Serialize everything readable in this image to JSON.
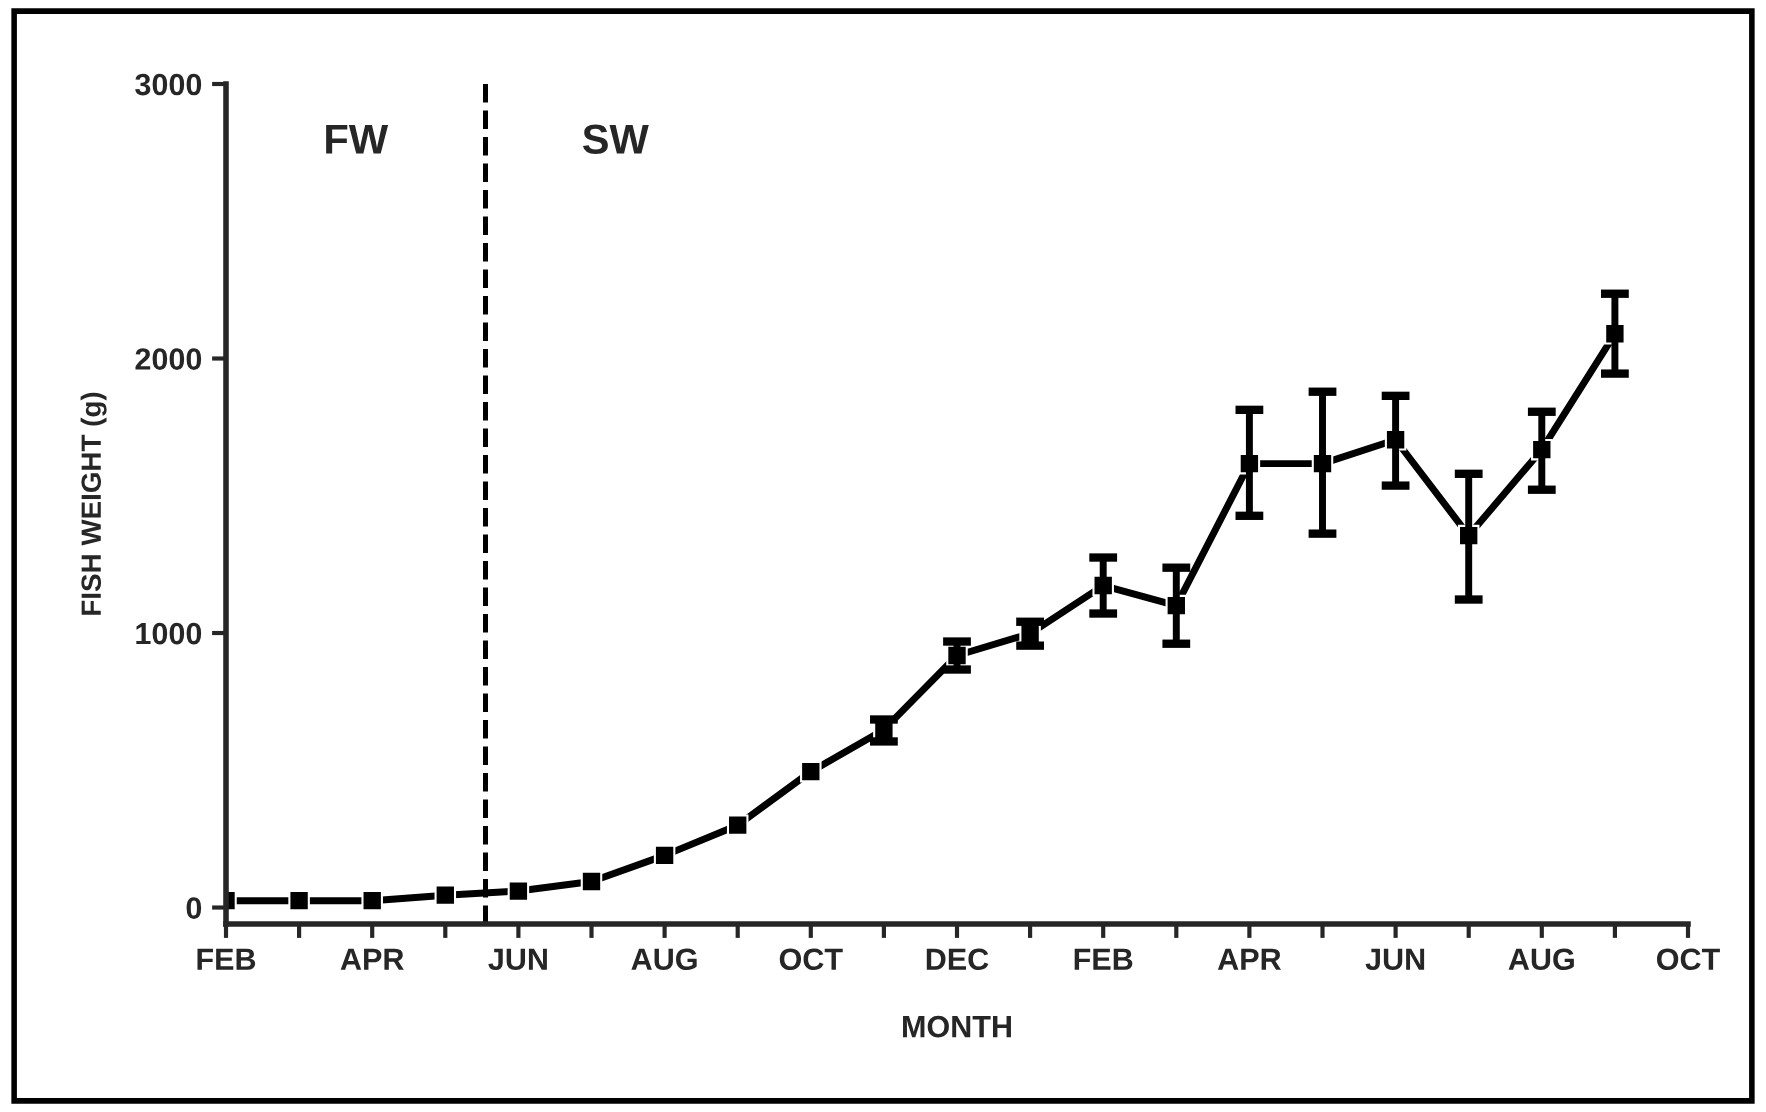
{
  "chart_data": {
    "type": "line",
    "xlabel": "MONTH",
    "ylabel": "FISH WEIGHT (g)",
    "categories": [
      "FEB",
      null,
      "APR",
      null,
      "JUN",
      null,
      "AUG",
      null,
      "OCT",
      null,
      "DEC",
      null,
      "FEB",
      null,
      "APR",
      null,
      "JUN",
      null,
      "AUG",
      null,
      "OCT"
    ],
    "series": [
      {
        "color": "#000000",
        "values": [
          25,
          25,
          25,
          45,
          60,
          95,
          190,
          300,
          495,
          648,
          918,
          998,
          1173,
          1100,
          1617,
          1617,
          1704,
          1355,
          1668,
          2090,
          null
        ],
        "errors": [
          null,
          null,
          null,
          null,
          null,
          null,
          null,
          null,
          null,
          [
            605,
            685
          ],
          [
            867,
            969
          ],
          [
            954,
            1041
          ],
          [
            1071,
            1275
          ],
          [
            961,
            1238
          ],
          [
            1427,
            1813
          ],
          [
            1362,
            1879
          ],
          [
            1537,
            1864
          ],
          [
            1122,
            1580
          ],
          [
            1522,
            1806
          ],
          [
            1945,
            2236
          ],
          null
        ]
      }
    ],
    "ylim": [
      -60,
      3000
    ],
    "yticks": [
      0,
      1000,
      2000,
      3000
    ],
    "annotations": [
      "FW",
      "SW"
    ],
    "marker": "square",
    "line_style": "solid",
    "grid": false,
    "legend": false
  }
}
